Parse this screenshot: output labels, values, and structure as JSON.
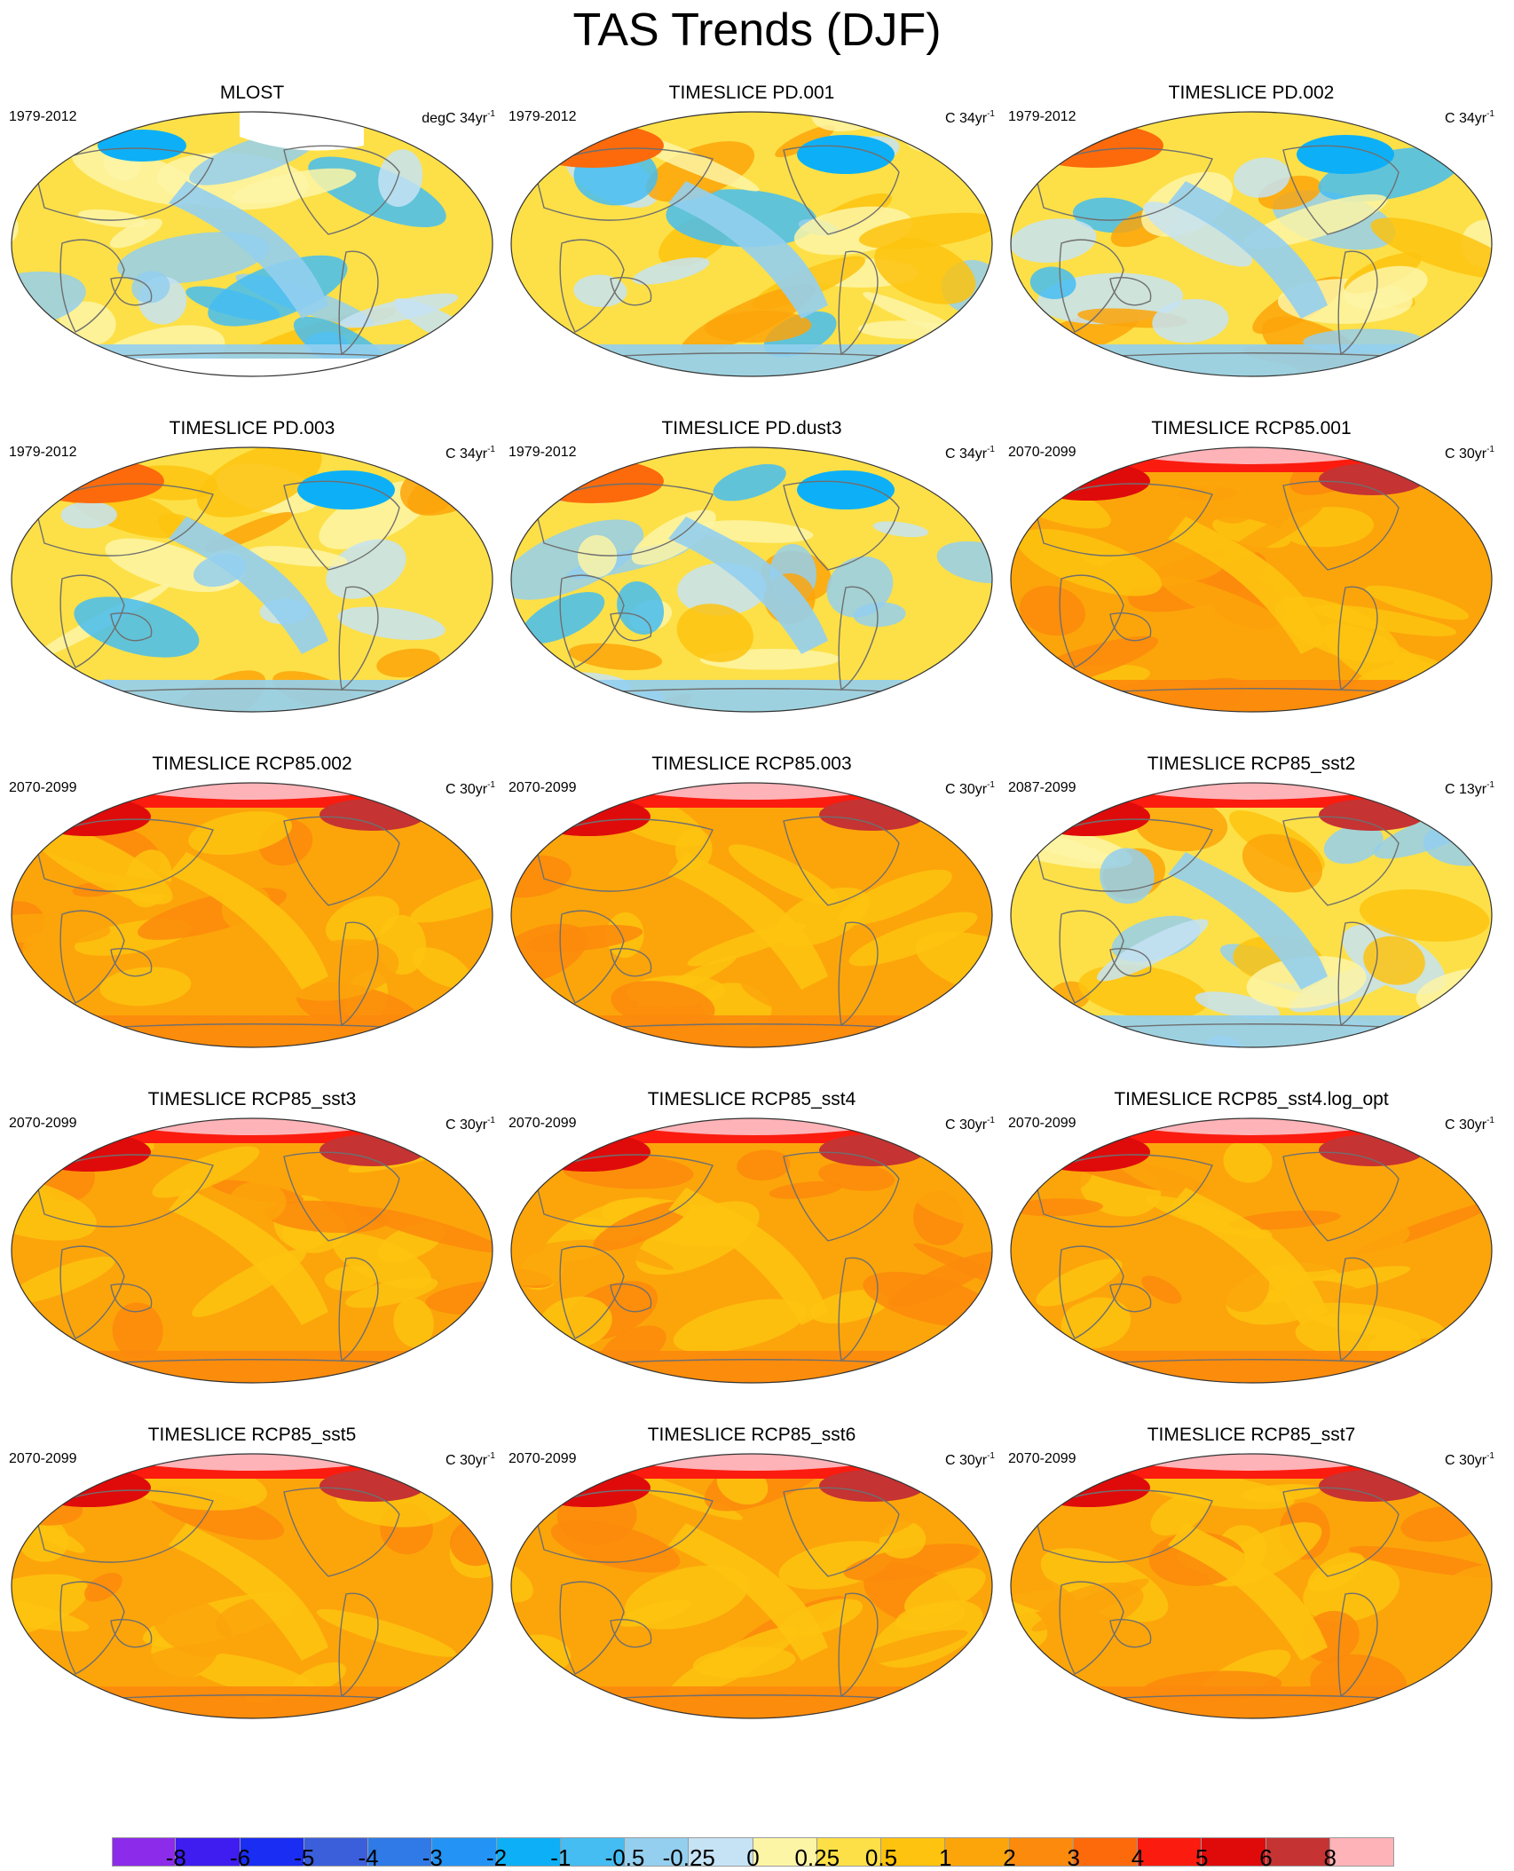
{
  "title": "TAS Trends (DJF)",
  "panels": [
    {
      "title": "MLOST",
      "period": "1979-2012",
      "units": "degC 34yr",
      "units_exp": "-1",
      "regime": "obs"
    },
    {
      "title": "TIMESLICE PD.001",
      "period": "1979-2012",
      "units": "C 34yr",
      "units_exp": "-1",
      "regime": "present"
    },
    {
      "title": "TIMESLICE PD.002",
      "period": "1979-2012",
      "units": "C 34yr",
      "units_exp": "-1",
      "regime": "present"
    },
    {
      "title": "TIMESLICE PD.003",
      "period": "1979-2012",
      "units": "C 34yr",
      "units_exp": "-1",
      "regime": "present"
    },
    {
      "title": "TIMESLICE PD.dust3",
      "period": "1979-2012",
      "units": "C 34yr",
      "units_exp": "-1",
      "regime": "present"
    },
    {
      "title": "TIMESLICE RCP85.001",
      "period": "2070-2099",
      "units": "C 30yr",
      "units_exp": "-1",
      "regime": "future"
    },
    {
      "title": "TIMESLICE RCP85.002",
      "period": "2070-2099",
      "units": "C 30yr",
      "units_exp": "-1",
      "regime": "future"
    },
    {
      "title": "TIMESLICE RCP85.003",
      "period": "2070-2099",
      "units": "C 30yr",
      "units_exp": "-1",
      "regime": "future"
    },
    {
      "title": "TIMESLICE RCP85_sst2",
      "period": "2087-2099",
      "units": "C 13yr",
      "units_exp": "-1",
      "regime": "mixed"
    },
    {
      "title": "TIMESLICE RCP85_sst3",
      "period": "2070-2099",
      "units": "C 30yr",
      "units_exp": "-1",
      "regime": "future"
    },
    {
      "title": "TIMESLICE RCP85_sst4",
      "period": "2070-2099",
      "units": "C 30yr",
      "units_exp": "-1",
      "regime": "future"
    },
    {
      "title": "TIMESLICE RCP85_sst4.log_opt",
      "period": "2070-2099",
      "units": "C 30yr",
      "units_exp": "-1",
      "regime": "future"
    },
    {
      "title": "TIMESLICE RCP85_sst5",
      "period": "2070-2099",
      "units": "C 30yr",
      "units_exp": "-1",
      "regime": "future"
    },
    {
      "title": "TIMESLICE RCP85_sst6",
      "period": "2070-2099",
      "units": "C 30yr",
      "units_exp": "-1",
      "regime": "future"
    },
    {
      "title": "TIMESLICE RCP85_sst7",
      "period": "2070-2099",
      "units": "C 30yr",
      "units_exp": "-1",
      "regime": "future"
    }
  ],
  "colorbar": {
    "colors": [
      "#8c2bea",
      "#3f1cef",
      "#1a2df2",
      "#3b5fdb",
      "#2f7ae6",
      "#2394f5",
      "#0db0f7",
      "#45bdf2",
      "#94cfef",
      "#c5e3f5",
      "#fdf5a6",
      "#fde047",
      "#fdc30f",
      "#fca50a",
      "#fc8a0c",
      "#fc6a0c",
      "#fb1c0f",
      "#df0b0b",
      "#c53333",
      "#feb3b8"
    ],
    "labels": [
      "-8",
      "-6",
      "-5",
      "-4",
      "-3",
      "-2",
      "-1",
      "-0.5",
      "-0.25",
      "0",
      "0.25",
      "0.5",
      "1",
      "2",
      "3",
      "4",
      "5",
      "6",
      "8"
    ]
  }
}
